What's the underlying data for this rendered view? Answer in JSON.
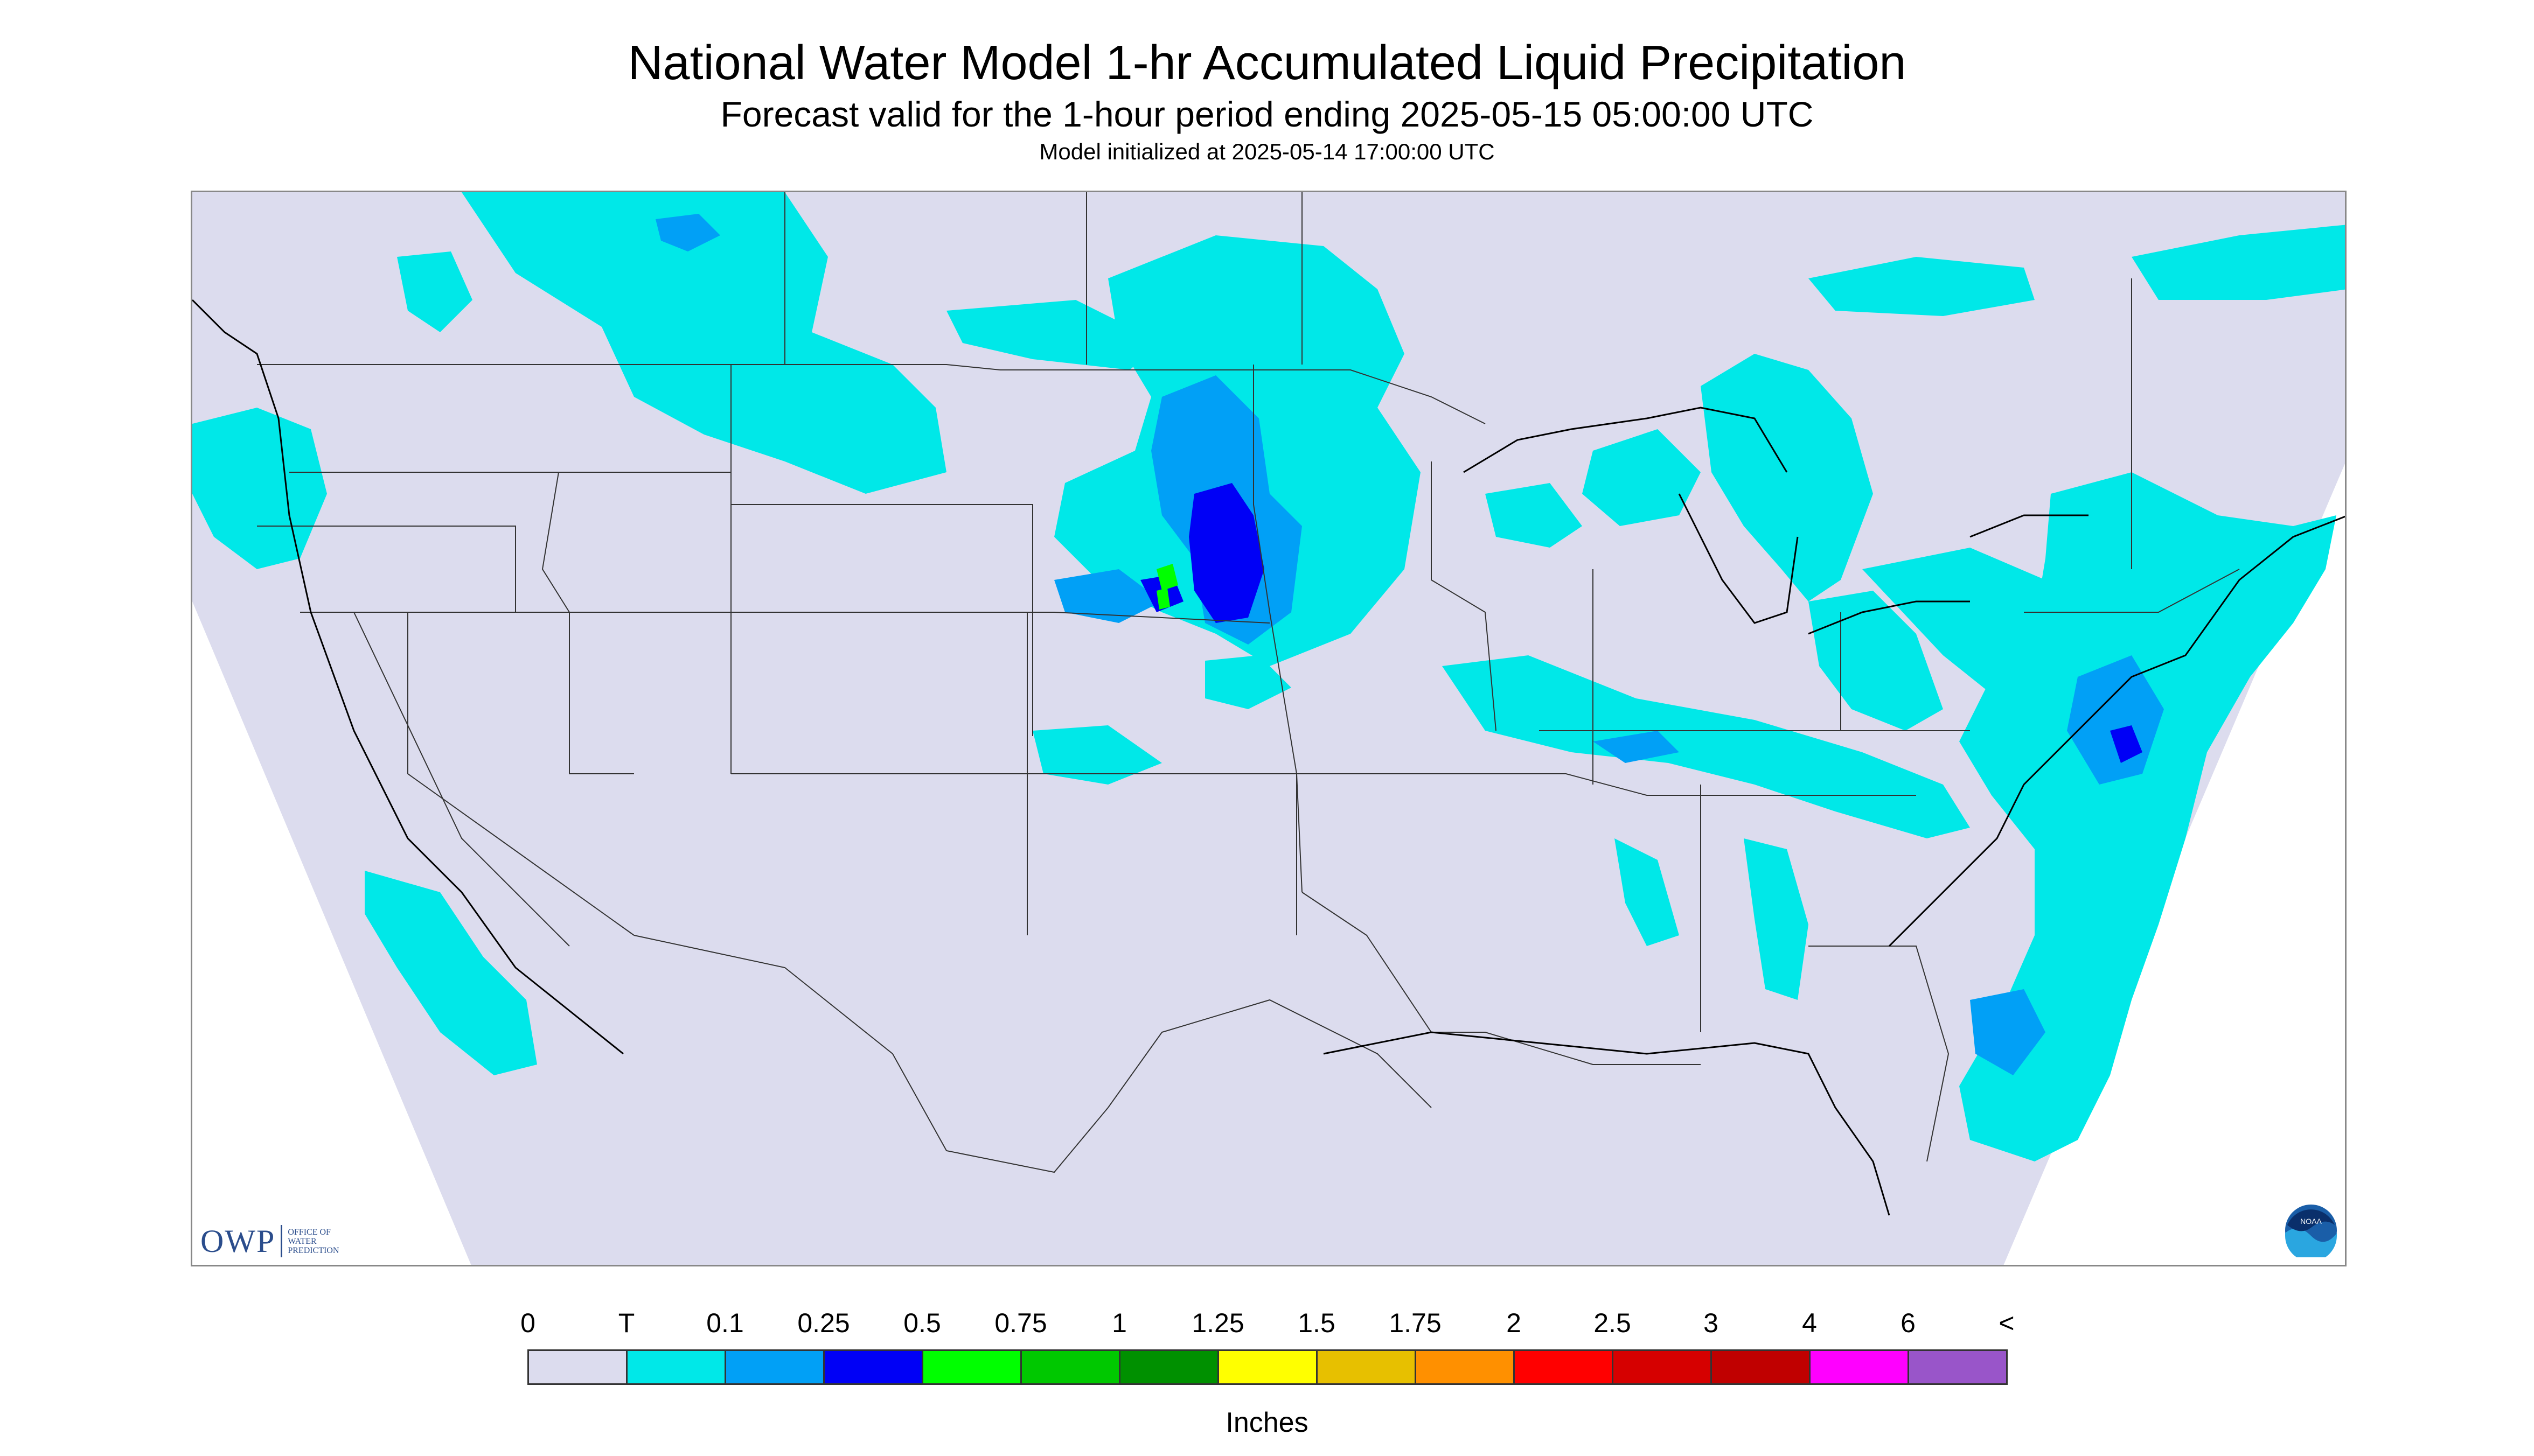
{
  "header": {
    "title": "National Water Model 1-hr Accumulated Liquid Precipitation",
    "subtitle": "Forecast valid for the 1-hour period ending 2025-05-15 05:00:00 UTC",
    "init": "Model initialized at 2025-05-14 17:00:00 UTC"
  },
  "logos": {
    "owp_big": "OWP",
    "owp_small": [
      "OFFICE OF",
      "WATER",
      "PREDICTION"
    ],
    "noaa_text": "NOAA"
  },
  "legend": {
    "labels": [
      "0",
      "T",
      "0.1",
      "0.25",
      "0.5",
      "0.75",
      "1",
      "1.25",
      "1.5",
      "1.75",
      "2",
      "2.5",
      "3",
      "4",
      "6",
      "<"
    ],
    "colors": [
      "#dcdcee",
      "#00e8e8",
      "#01a0f6",
      "#0000f6",
      "#00ff00",
      "#00c800",
      "#009000",
      "#ffff00",
      "#e7c000",
      "#ff9000",
      "#ff0000",
      "#d60000",
      "#c00000",
      "#ff00ff",
      "#9955c9"
    ],
    "units": "Inches"
  },
  "map": {
    "background": "#dcdcee",
    "outside": "#ffffff",
    "light_precip": "#00e8e8",
    "moderate_precip": "#01a0f6",
    "heavy_precip": "#0000f6",
    "green_precip": "#00ff00",
    "border_color": "#333333"
  }
}
